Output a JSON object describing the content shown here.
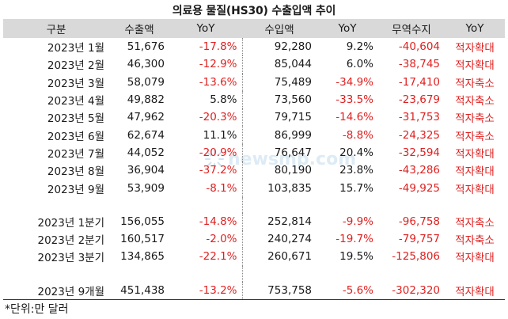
{
  "title": "의료용 물질(HS30) 수출입액 추이",
  "headers": [
    "구분",
    "수출액",
    "YoY",
    "수입액",
    "YoY",
    "무역수지",
    "YoY"
  ],
  "rows": [
    {
      "label": "2023년 1월",
      "exp": "51,676",
      "exp_yoy": "-17.8%",
      "imp": "92,280",
      "imp_yoy": "9.2%",
      "bal": "-40,604",
      "status": "적자확대"
    },
    {
      "label": "2023년 2월",
      "exp": "46,300",
      "exp_yoy": "-12.9%",
      "imp": "85,044",
      "imp_yoy": "6.0%",
      "bal": "-38,745",
      "status": "적자확대"
    },
    {
      "label": "2023년 3월",
      "exp": "58,079",
      "exp_yoy": "-13.6%",
      "imp": "75,489",
      "imp_yoy": "-34.9%",
      "bal": "-17,410",
      "status": "적자축소"
    },
    {
      "label": "2023년 4월",
      "exp": "49,882",
      "exp_yoy": "5.8%",
      "imp": "73,560",
      "imp_yoy": "-33.5%",
      "bal": "-23,679",
      "status": "적자축소"
    },
    {
      "label": "2023년 5월",
      "exp": "47,962",
      "exp_yoy": "-20.3%",
      "imp": "79,715",
      "imp_yoy": "-14.6%",
      "bal": "-31,753",
      "status": "적자축소"
    },
    {
      "label": "2023년 6월",
      "exp": "62,674",
      "exp_yoy": "11.1%",
      "imp": "86,999",
      "imp_yoy": "-8.8%",
      "bal": "-24,325",
      "status": "적자축소"
    },
    {
      "label": "2023년 7월",
      "exp": "44,052",
      "exp_yoy": "-20.9%",
      "imp": "76,647",
      "imp_yoy": "20.4%",
      "bal": "-32,594",
      "status": "적자확대"
    },
    {
      "label": "2023년 8월",
      "exp": "36,904",
      "exp_yoy": "-37.2%",
      "imp": "80,190",
      "imp_yoy": "23.8%",
      "bal": "-43,286",
      "status": "적자확대"
    },
    {
      "label": "2023년 9월",
      "exp": "53,909",
      "exp_yoy": "-8.1%",
      "imp": "103,835",
      "imp_yoy": "15.7%",
      "bal": "-49,925",
      "status": "적자확대"
    }
  ],
  "quarters": [
    {
      "label": "2023년 1분기",
      "exp": "156,055",
      "exp_yoy": "-14.8%",
      "imp": "252,814",
      "imp_yoy": "-9.9%",
      "bal": "-96,758",
      "status": "적자축소"
    },
    {
      "label": "2023년 2분기",
      "exp": "160,517",
      "exp_yoy": "-2.0%",
      "imp": "240,274",
      "imp_yoy": "-19.7%",
      "bal": "-79,757",
      "status": "적자축소"
    },
    {
      "label": "2023년 3분기",
      "exp": "134,865",
      "exp_yoy": "-22.1%",
      "imp": "260,671",
      "imp_yoy": "19.5%",
      "bal": "-125,806",
      "status": "적자확대"
    }
  ],
  "total": [
    {
      "label": "2023년 9개월",
      "exp": "451,438",
      "exp_yoy": "-13.2%",
      "imp": "753,758",
      "imp_yoy": "-5.6%",
      "bal": "-302,320",
      "status": "적자확대"
    }
  ],
  "unit_note": "*단위:만 달러",
  "watermark": "newsmp.com",
  "colors": {
    "negative": "#e02020",
    "header_bg": "#d9d9d9",
    "watermark": "#cfe3f1"
  }
}
